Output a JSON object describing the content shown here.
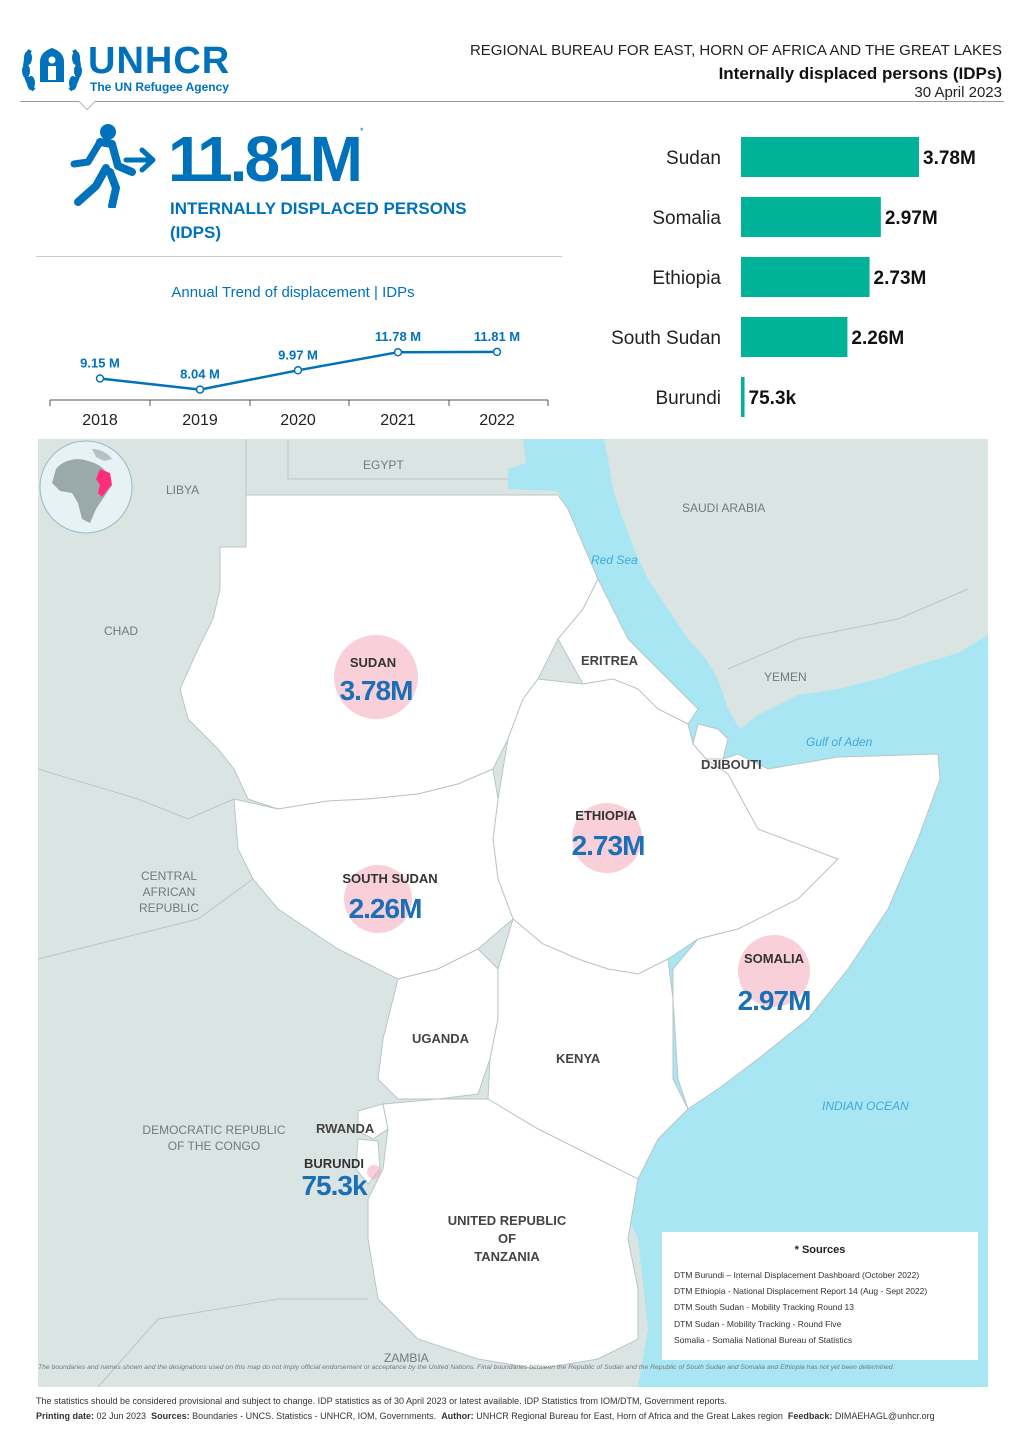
{
  "header": {
    "logo_text": "UNHCR",
    "logo_subtitle": "The UN Refugee Agency",
    "region": "REGIONAL BUREAU FOR EAST, HORN OF AFRICA AND THE GREAT LAKES",
    "title": "Internally displaced persons (IDPs)",
    "date": "30 April 2023"
  },
  "kpi": {
    "value": "11.81M",
    "footnote_mark": "*",
    "label": "INTERNALLY DISPLACED PERSONS (IDPS)",
    "icon": "person-moving-arrow-icon"
  },
  "chart_data": [
    {
      "type": "line",
      "title": "Annual Trend of displacement | IDPs",
      "x": [
        "2018",
        "2019",
        "2020",
        "2021",
        "2022"
      ],
      "values": [
        9.15,
        8.04,
        9.97,
        11.78,
        11.81
      ],
      "data_labels": [
        "9.15 M",
        "8.04 M",
        "9.97 M",
        "11.78 M",
        "11.81 M"
      ],
      "color": "#0072BC"
    },
    {
      "type": "bar",
      "orientation": "horizontal",
      "categories": [
        "Sudan",
        "Somalia",
        "Ethiopia",
        "South Sudan",
        "Burundi"
      ],
      "values": [
        3.78,
        2.97,
        2.73,
        2.26,
        0.0753
      ],
      "data_labels": [
        "3.78M",
        "2.97M",
        "2.73M",
        "2.26M",
        "75.3k"
      ],
      "color": "#00B398"
    }
  ],
  "map": {
    "countries": {
      "libya": "LIBYA",
      "egypt": "EGYPT",
      "saudi": "SAUDI ARABIA",
      "chad": "CHAD",
      "yemen": "YEMEN",
      "car_1": "CENTRAL",
      "car_2": "AFRICAN",
      "car_3": "REPUBLIC",
      "drc_1": "DEMOCRATIC REPUBLIC",
      "drc_2": "OF THE CONGO",
      "zambia": "ZAMBIA"
    },
    "focus_countries": {
      "eritrea": "ERITREA",
      "djibouti": "DJIBOUTI",
      "uganda": "UGANDA",
      "kenya": "KENYA",
      "rwanda": "RWANDA",
      "tanzania_1": "UNITED REPUBLIC",
      "tanzania_2": "OF",
      "tanzania_3": "TANZANIA"
    },
    "seas": {
      "red_sea": "Red Sea",
      "gulf_aden": "Gulf of Aden",
      "indian_ocean": "INDIAN OCEAN"
    },
    "bubbles": [
      {
        "name": "SUDAN",
        "value": "3.78M"
      },
      {
        "name": "ETHIOPIA",
        "value": "2.73M"
      },
      {
        "name": "SOUTH SUDAN",
        "value": "2.26M"
      },
      {
        "name": "SOMALIA",
        "value": "2.97M"
      },
      {
        "name": "BURUNDI",
        "value": "75.3k"
      }
    ],
    "sources_title": "* Sources",
    "sources": [
      "DTM Burundi – Internal Displacement Dashboard (October 2022)",
      "DTM Ethiopia - National Displacement Report 14 (Aug - Sept 2022)",
      "DTM South Sudan - Mobility Tracking Round 13",
      "DTM Sudan - Mobility Tracking - Round Five",
      "Somalia - Somalia National Bureau of Statistics"
    ],
    "disclaimer": "The boundaries and names shown and the designations used on this map do not imply official endorsement or acceptance by the United Nations. Final boundaries between the Republic of Sudan and the Republic of South Sudan and Somalia and Ethiopia has not yet been determined.",
    "colors": {
      "sea": "#a9e6f4",
      "land_other": "#dae5e3",
      "land_focus": "#ffffff",
      "bubble": "#f4aabc",
      "highlight": "#ff2d7a"
    }
  },
  "footer": {
    "line1": "The statistics should be considered provisional and subject to change. IDP statistics as of 30 April 2023 or latest available. IDP Statistics from IOM/DTM, Government reports.",
    "printing_label": "Printing date:",
    "printing_value": "02 Jun 2023",
    "sources_label": "Sources:",
    "sources_value": "Boundaries - UNCS. Statistics - UNHCR, IOM, Governments.",
    "author_label": "Author:",
    "author_value": "UNHCR Regional Bureau for East, Horn of Africa and the Great Lakes region",
    "feedback_label": "Feedback:",
    "feedback_value": "DIMAEHAGL@unhcr.org"
  }
}
